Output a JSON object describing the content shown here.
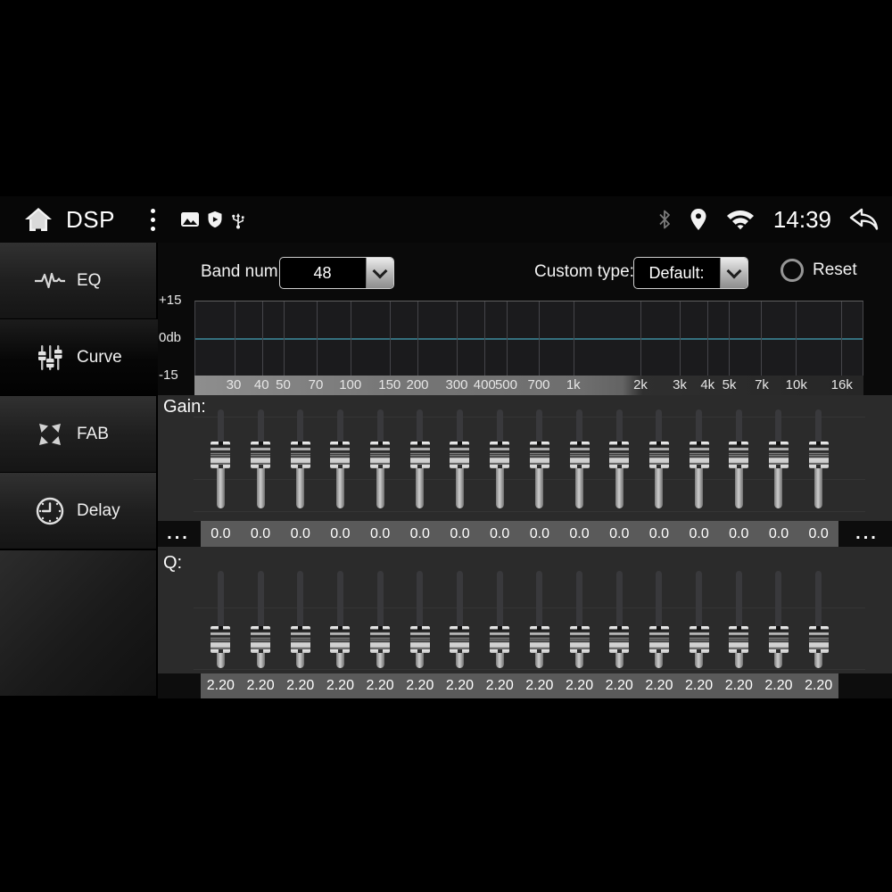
{
  "status_bar": {
    "title": "DSP",
    "time": "14:39"
  },
  "sidebar": {
    "items": [
      {
        "id": "eq",
        "label": "EQ",
        "selected": false
      },
      {
        "id": "curve",
        "label": "Curve",
        "selected": true
      },
      {
        "id": "fab",
        "label": "FAB",
        "selected": false
      },
      {
        "id": "delay",
        "label": "Delay",
        "selected": false
      }
    ]
  },
  "controls": {
    "band_num_label": "Band num:",
    "band_num_value": "48",
    "custom_type_label": "Custom type:",
    "custom_type_value": "Default:",
    "reset_label": "Reset"
  },
  "graph": {
    "y_axis_labels": [
      "+15",
      "0db",
      "-15"
    ],
    "freq_ticks": [
      "30",
      "40",
      "50",
      "70",
      "100",
      "150",
      "200",
      "300",
      "400",
      "500",
      "700",
      "1k",
      "2k",
      "3k",
      "4k",
      "5k",
      "7k",
      "10k",
      "16k"
    ],
    "zero_line_color": "#35707e",
    "curve_db": 0
  },
  "gain": {
    "label": "Gain:",
    "more_left": "...",
    "more_right": "...",
    "values": [
      "0.0",
      "0.0",
      "0.0",
      "0.0",
      "0.0",
      "0.0",
      "0.0",
      "0.0",
      "0.0",
      "0.0",
      "0.0",
      "0.0",
      "0.0",
      "0.0",
      "0.0",
      "0.0"
    ]
  },
  "q": {
    "label": "Q:",
    "values": [
      "2.20",
      "2.20",
      "2.20",
      "2.20",
      "2.20",
      "2.20",
      "2.20",
      "2.20",
      "2.20",
      "2.20",
      "2.20",
      "2.20",
      "2.20",
      "2.20",
      "2.20",
      "2.20"
    ]
  }
}
